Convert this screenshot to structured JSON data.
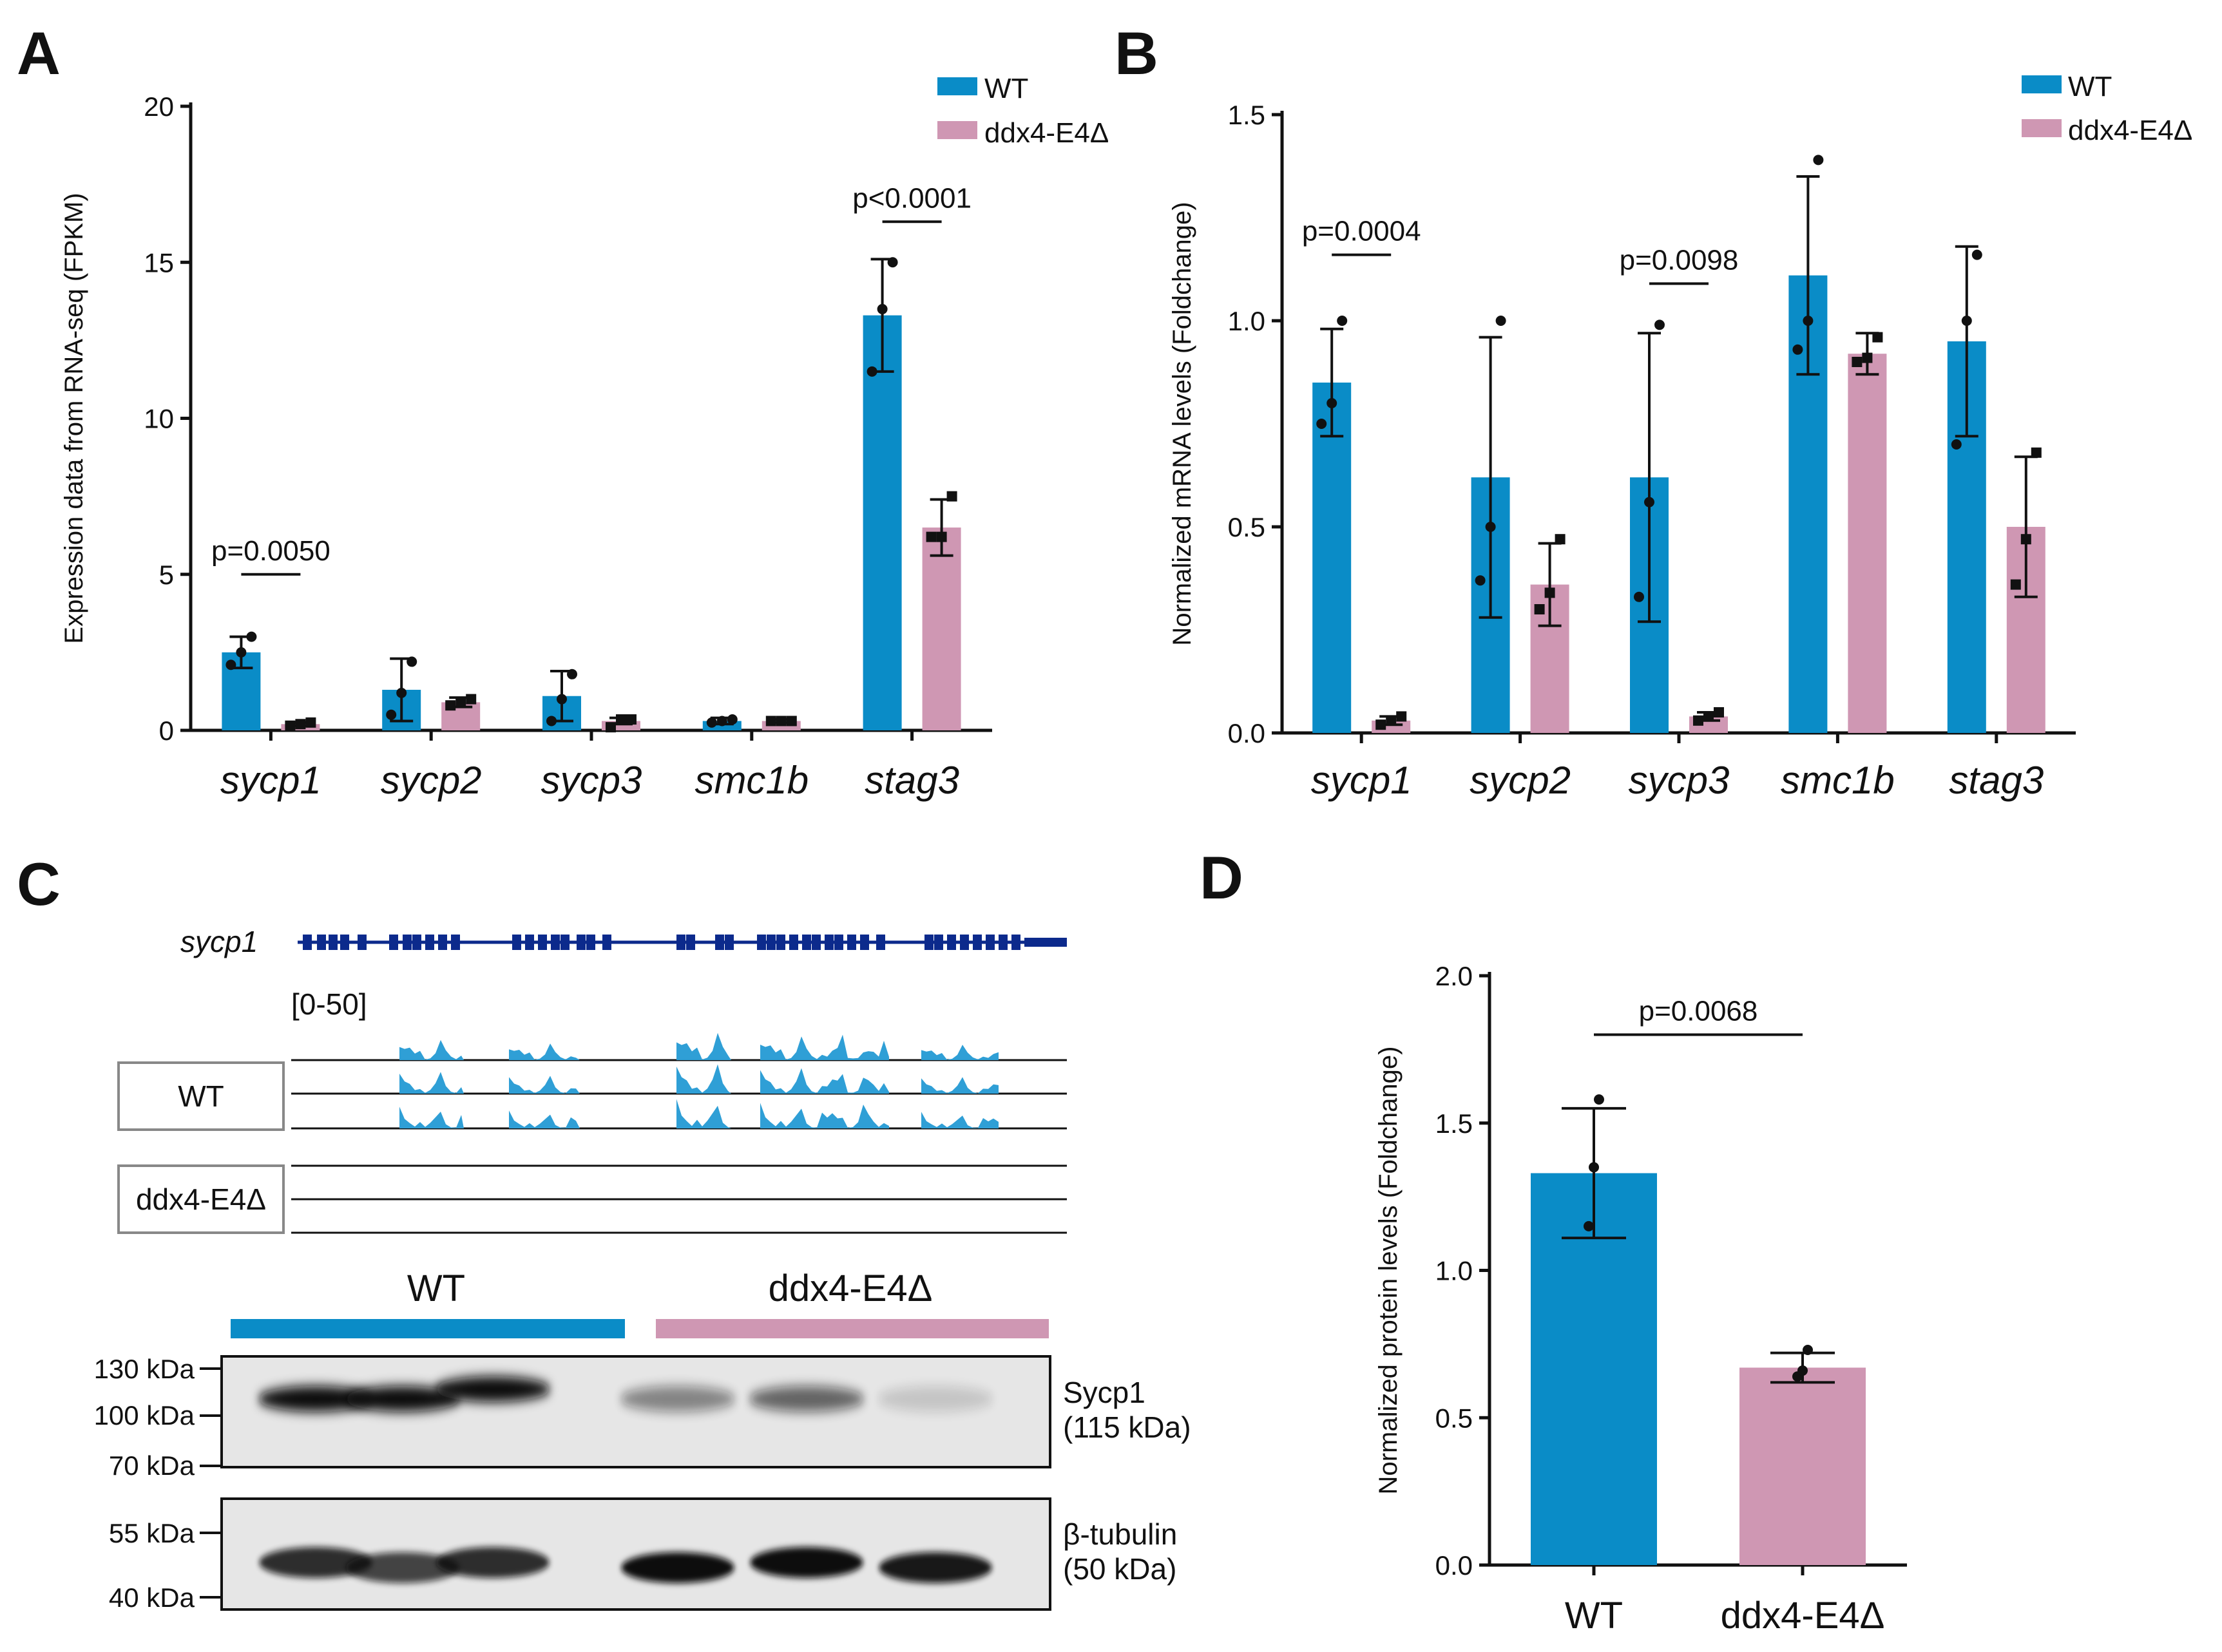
{
  "figure": {
    "panels": [
      "A",
      "B",
      "C",
      "D"
    ]
  },
  "colors": {
    "wt": "#0a8cc7",
    "mut": "#cf97b3",
    "track_blue": "#2f9fd6",
    "gene_navy": "#0c2a8c"
  },
  "legend": {
    "wt": "WT",
    "mut": "ddx4-E4Δ"
  },
  "chart_data": [
    {
      "panel": "A",
      "type": "bar",
      "ylabel": "Expression data from RNA-seq (FPKM)",
      "xlabel": "",
      "ylim": [
        0,
        20
      ],
      "yticks": [
        0,
        5,
        10,
        15,
        20
      ],
      "categories": [
        "sycp1",
        "sycp2",
        "sycp3",
        "smc1b",
        "stag3"
      ],
      "series": [
        {
          "name": "WT",
          "values": [
            2.5,
            1.3,
            1.1,
            0.3,
            13.3
          ],
          "err": [
            0.5,
            1.0,
            0.8,
            0.1,
            1.8
          ],
          "points": [
            [
              2.1,
              2.5,
              3.0
            ],
            [
              0.5,
              1.2,
              2.2
            ],
            [
              0.3,
              1.0,
              1.8
            ],
            [
              0.25,
              0.3,
              0.35
            ],
            [
              11.5,
              13.5,
              15.0
            ]
          ]
        },
        {
          "name": "ddx4-E4Δ",
          "values": [
            0.2,
            0.9,
            0.3,
            0.3,
            6.5
          ],
          "err": [
            0.05,
            0.15,
            0.1,
            0.05,
            0.9
          ],
          "points": [
            [
              0.15,
              0.2,
              0.25
            ],
            [
              0.8,
              0.9,
              1.0
            ],
            [
              0.1,
              0.35,
              0.35
            ],
            [
              0.3,
              0.3,
              0.3
            ],
            [
              6.2,
              6.2,
              7.5
            ]
          ]
        }
      ],
      "annotations": [
        {
          "text": "p=0.0050",
          "category": "sycp1",
          "y": 5.0
        },
        {
          "text": "p<0.0001",
          "category": "stag3",
          "y": 16.3
        }
      ]
    },
    {
      "panel": "B",
      "type": "bar",
      "ylabel": "Normalized mRNA levels (Foldchange)",
      "xlabel": "",
      "ylim": [
        0,
        1.5
      ],
      "yticks": [
        0.0,
        0.5,
        1.0,
        1.5
      ],
      "ytick_labels": [
        "0.0",
        "0.5",
        "1.0",
        "1.5"
      ],
      "categories": [
        "sycp1",
        "sycp2",
        "sycp3",
        "smc1b",
        "stag3"
      ],
      "series": [
        {
          "name": "WT",
          "values": [
            0.85,
            0.62,
            0.62,
            1.11,
            0.95
          ],
          "err": [
            0.13,
            0.34,
            0.35,
            0.24,
            0.23
          ],
          "points": [
            [
              0.75,
              0.8,
              1.0
            ],
            [
              0.37,
              0.5,
              1.0
            ],
            [
              0.33,
              0.56,
              0.99
            ],
            [
              0.93,
              1.0,
              1.39
            ],
            [
              0.7,
              1.0,
              1.16
            ]
          ]
        },
        {
          "name": "ddx4-E4Δ",
          "values": [
            0.03,
            0.36,
            0.04,
            0.92,
            0.5
          ],
          "err": [
            0.01,
            0.1,
            0.01,
            0.05,
            0.17
          ],
          "points": [
            [
              0.02,
              0.03,
              0.04
            ],
            [
              0.3,
              0.34,
              0.47
            ],
            [
              0.03,
              0.04,
              0.05
            ],
            [
              0.9,
              0.91,
              0.96
            ],
            [
              0.36,
              0.47,
              0.68
            ]
          ]
        }
      ],
      "annotations": [
        {
          "text": "p=0.0004",
          "category": "sycp1",
          "y": 1.16
        },
        {
          "text": "p=0.0098",
          "category": "sycp3",
          "y": 1.09
        }
      ]
    },
    {
      "panel": "D",
      "type": "bar",
      "ylabel": "Normalized protein levels (Foldchange)",
      "xlabel": "",
      "ylim": [
        0,
        2.0
      ],
      "yticks": [
        0.0,
        0.5,
        1.0,
        1.5,
        2.0
      ],
      "ytick_labels": [
        "0.0",
        "0.5",
        "1.0",
        "1.5",
        "2.0"
      ],
      "categories": [
        "WT",
        "ddx4-E4Δ"
      ],
      "series": [
        {
          "name": "",
          "values": [
            1.33,
            0.67
          ],
          "err": [
            0.22,
            0.05
          ],
          "points": [
            [
              1.15,
              1.35,
              1.58
            ],
            [
              0.64,
              0.66,
              0.73
            ]
          ]
        }
      ],
      "annotations": [
        {
          "text": "p=0.0068",
          "y": 1.8
        }
      ]
    }
  ],
  "panel_c": {
    "gene_label": "sycp1",
    "range_label": "[0-50]",
    "track_groups": [
      "WT",
      "ddx4-E4Δ"
    ],
    "blot_groups": [
      "WT",
      "ddx4-E4Δ"
    ],
    "blot1_markers": [
      "130 kDa",
      "100 kDa",
      "70 kDa"
    ],
    "blot1_label": [
      "Sycp1",
      "(115 kDa)"
    ],
    "blot2_markers": [
      "55 kDa",
      "40 kDa"
    ],
    "blot2_label": [
      "β-tubulin",
      "(50 kDa)"
    ],
    "blot1_band_intensity": [
      1.0,
      1.0,
      1.0,
      0.45,
      0.6,
      0.15
    ],
    "blot2_band_intensity": [
      0.85,
      0.75,
      0.85,
      1.0,
      1.0,
      0.95
    ]
  }
}
